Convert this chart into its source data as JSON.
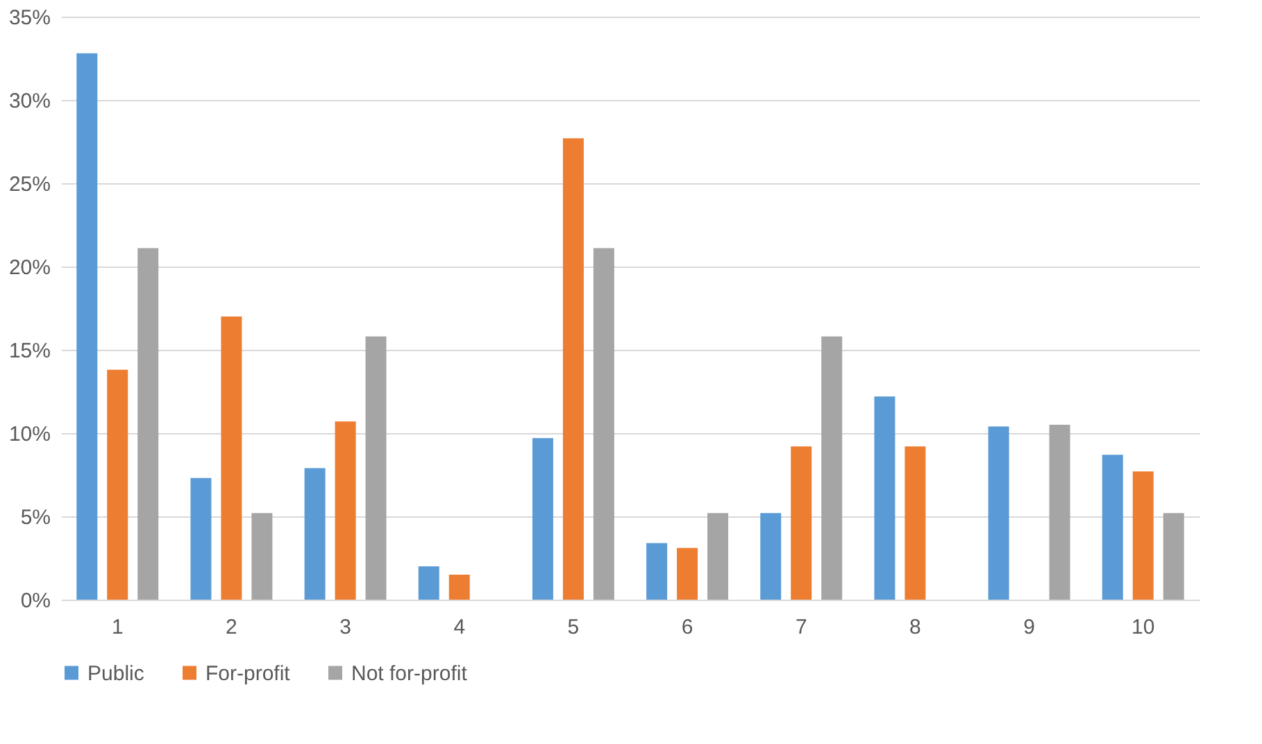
{
  "chart_data": {
    "type": "bar",
    "categories": [
      "1",
      "2",
      "3",
      "4",
      "5",
      "6",
      "7",
      "8",
      "9",
      "10"
    ],
    "series": [
      {
        "name": "Public",
        "color": "#5b9bd5",
        "values": [
          32.8,
          7.3,
          7.9,
          2.0,
          9.7,
          3.4,
          5.2,
          12.2,
          10.4,
          8.7
        ]
      },
      {
        "name": "For-profit",
        "color": "#ed7d31",
        "values": [
          13.8,
          17.0,
          10.7,
          1.5,
          27.7,
          3.1,
          9.2,
          9.2,
          null,
          7.7
        ]
      },
      {
        "name": "Not for-profit",
        "color": "#a5a5a5",
        "values": [
          21.1,
          5.2,
          15.8,
          null,
          21.1,
          5.2,
          15.8,
          null,
          10.5,
          5.2
        ]
      }
    ],
    "ylim": [
      0,
      35
    ],
    "yticks": [
      {
        "value": 0,
        "label": "0%"
      },
      {
        "value": 5,
        "label": "5%"
      },
      {
        "value": 10,
        "label": "10%"
      },
      {
        "value": 15,
        "label": "15%"
      },
      {
        "value": 20,
        "label": "20%"
      },
      {
        "value": 25,
        "label": "25%"
      },
      {
        "value": 30,
        "label": "30%"
      },
      {
        "value": 35,
        "label": "35%"
      }
    ],
    "grid": "y",
    "legend": "bottom"
  }
}
